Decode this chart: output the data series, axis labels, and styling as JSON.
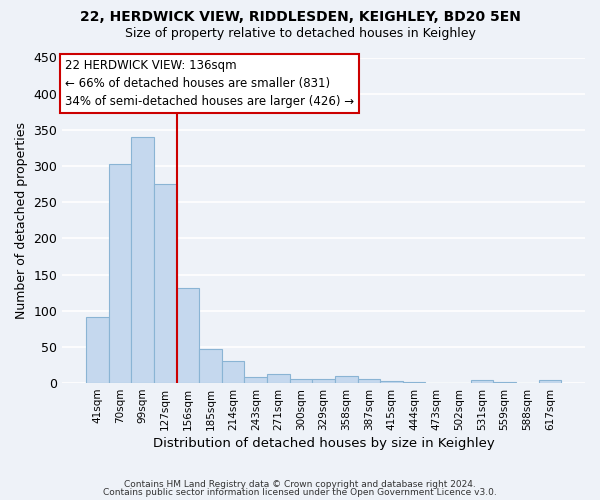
{
  "title1": "22, HERDWICK VIEW, RIDDLESDEN, KEIGHLEY, BD20 5EN",
  "title2": "Size of property relative to detached houses in Keighley",
  "xlabel": "Distribution of detached houses by size in Keighley",
  "ylabel": "Number of detached properties",
  "bar_labels": [
    "41sqm",
    "70sqm",
    "99sqm",
    "127sqm",
    "156sqm",
    "185sqm",
    "214sqm",
    "243sqm",
    "271sqm",
    "300sqm",
    "329sqm",
    "358sqm",
    "387sqm",
    "415sqm",
    "444sqm",
    "473sqm",
    "502sqm",
    "531sqm",
    "559sqm",
    "588sqm",
    "617sqm"
  ],
  "bar_values": [
    91,
    303,
    340,
    275,
    131,
    47,
    30,
    9,
    13,
    6,
    5,
    10,
    5,
    3,
    1,
    0,
    0,
    4,
    1,
    0,
    4
  ],
  "bar_color": "#c5d8ee",
  "bar_edge_color": "#8ab4d4",
  "vline_color": "#cc0000",
  "vline_x": 3.5,
  "ylim": [
    0,
    450
  ],
  "yticks": [
    0,
    50,
    100,
    150,
    200,
    250,
    300,
    350,
    400,
    450
  ],
  "annotation_title": "22 HERDWICK VIEW: 136sqm",
  "annotation_line1": "← 66% of detached houses are smaller (831)",
  "annotation_line2": "34% of semi-detached houses are larger (426) →",
  "annotation_box_color": "#ffffff",
  "annotation_box_edge_color": "#cc0000",
  "footer1": "Contains HM Land Registry data © Crown copyright and database right 2024.",
  "footer2": "Contains public sector information licensed under the Open Government Licence v3.0.",
  "background_color": "#eef2f8",
  "grid_color": "#ffffff",
  "title1_fontsize": 10,
  "title2_fontsize": 9
}
